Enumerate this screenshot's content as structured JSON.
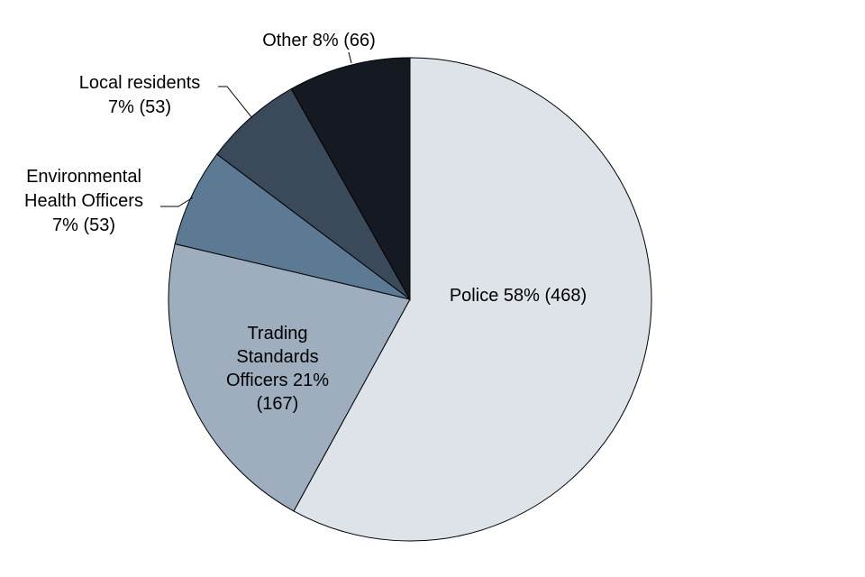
{
  "chart_data": {
    "type": "pie",
    "start_angle_deg": 0,
    "direction": "clockwise",
    "slices": [
      {
        "name": "Police",
        "percent": 58,
        "count": 468,
        "color": "#dde3e9",
        "label_lines": [
          "Police 58% (468)"
        ]
      },
      {
        "name": "Trading Standards Officers",
        "percent": 21,
        "count": 167,
        "color": "#9eaebf",
        "label_lines": [
          "Trading",
          "Standards",
          "Officers 21%",
          "(167)"
        ]
      },
      {
        "name": "Environmental Health Officers",
        "percent": 7,
        "count": 53,
        "color": "#5d7a95",
        "label_lines": [
          "Environmental",
          "Health Officers",
          "7% (53)"
        ]
      },
      {
        "name": "Local residents",
        "percent": 7,
        "count": 53,
        "color": "#3b4a5a",
        "label_lines": [
          "Local residents",
          "7% (53)"
        ]
      },
      {
        "name": "Other",
        "percent": 8,
        "count": 66,
        "color": "#151a22",
        "label_lines": [
          "Other 8% (66)"
        ]
      }
    ]
  }
}
